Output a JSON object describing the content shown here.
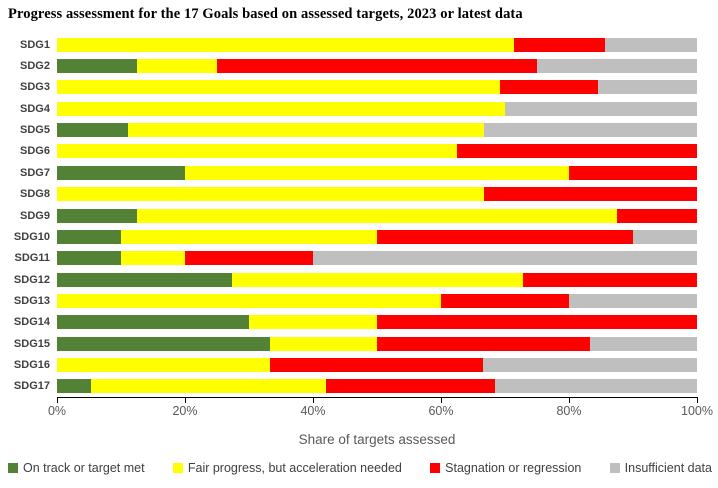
{
  "title": "Progress assessment for the 17 Goals based on assessed targets, 2023 or latest data",
  "colors": {
    "on_track": "#538135",
    "fair_progress": "#ffff00",
    "stagnation": "#ff0000",
    "insufficient": "#bfbfbf",
    "axis_text": "#595959",
    "category_text": "#404040"
  },
  "legend": {
    "items": [
      {
        "label": "On track or target met",
        "color": "#538135"
      },
      {
        "label": "Fair progress, but acceleration needed",
        "color": "#ffff00"
      },
      {
        "label": "Stagnation or regression",
        "color": "#ff0000"
      },
      {
        "label": "Insufficient data",
        "color": "#bfbfbf"
      }
    ]
  },
  "chart_data": {
    "type": "bar",
    "orientation": "horizontal",
    "stacked": true,
    "title": "Progress assessment for the 17 Goals based on assessed targets, 2023 or latest data",
    "xlabel": "Share of targets assessed",
    "ylabel": "",
    "xlim": [
      0,
      100
    ],
    "x_ticks": [
      {
        "value": 0,
        "label": "0%"
      },
      {
        "value": 20,
        "label": "20%"
      },
      {
        "value": 40,
        "label": "40%"
      },
      {
        "value": 60,
        "label": "60%"
      },
      {
        "value": 80,
        "label": "80%"
      },
      {
        "value": 100,
        "label": "100%"
      }
    ],
    "categories": [
      "SDG1",
      "SDG2",
      "SDG3",
      "SDG4",
      "SDG5",
      "SDG6",
      "SDG7",
      "SDG8",
      "SDG9",
      "SDG10",
      "SDG11",
      "SDG12",
      "SDG13",
      "SDG14",
      "SDG15",
      "SDG16",
      "SDG17"
    ],
    "series": [
      {
        "name": "On track or target met",
        "color": "#538135",
        "values": [
          0,
          12.5,
          0,
          0,
          11.1,
          0,
          20,
          0,
          12.5,
          10,
          10,
          27.3,
          0,
          30,
          33.3,
          0,
          5.3
        ]
      },
      {
        "name": "Fair progress, but acceleration needed",
        "color": "#ffff00",
        "values": [
          71.4,
          12.5,
          69.2,
          70,
          55.6,
          62.5,
          60,
          66.7,
          75,
          40,
          10,
          45.5,
          60,
          20,
          16.7,
          33.3,
          36.8
        ]
      },
      {
        "name": "Stagnation or regression",
        "color": "#ff0000",
        "values": [
          14.3,
          50,
          15.4,
          0,
          0,
          37.5,
          20,
          33.3,
          12.5,
          40,
          20,
          27.2,
          20,
          50,
          33.3,
          33.3,
          26.3
        ]
      },
      {
        "name": "Insufficient data",
        "color": "#bfbfbf",
        "values": [
          14.3,
          25,
          15.4,
          30,
          33.3,
          0,
          0,
          0,
          0,
          10,
          60,
          0,
          20,
          0,
          16.7,
          33.4,
          31.6
        ]
      }
    ],
    "legend_position": "bottom",
    "grid": false
  }
}
